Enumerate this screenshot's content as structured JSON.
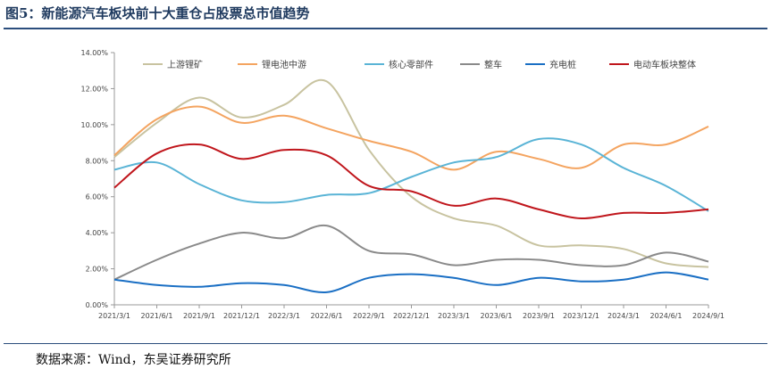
{
  "figure": {
    "title": "图5：新能源汽车板块前十大重仓占股票总市值趋势",
    "source": "数据来源：Wind，东吴证券研究所"
  },
  "chart_data": {
    "type": "line",
    "categories": [
      "2021/3/1",
      "2021/6/1",
      "2021/9/1",
      "2021/12/1",
      "2022/3/1",
      "2022/6/1",
      "2022/9/1",
      "2022/12/1",
      "2023/3/1",
      "2023/6/1",
      "2023/9/1",
      "2023/12/1",
      "2024/3/1",
      "2024/6/1",
      "2024/9/1"
    ],
    "y_ticks": [
      "0.00%",
      "2.00%",
      "4.00%",
      "6.00%",
      "8.00%",
      "10.00%",
      "12.00%",
      "14.00%"
    ],
    "ylim": [
      0,
      14
    ],
    "grid": false,
    "legend_position": "top",
    "series": [
      {
        "name": "上游锂矿",
        "color": "#c8c3a0",
        "values": [
          8.2,
          10.1,
          11.5,
          10.4,
          11.1,
          12.4,
          8.6,
          6.0,
          4.8,
          4.4,
          3.3,
          3.3,
          3.1,
          2.3,
          2.1
        ]
      },
      {
        "name": "锂电池中游",
        "color": "#f4a460",
        "values": [
          8.3,
          10.3,
          11.0,
          10.1,
          10.5,
          9.8,
          9.1,
          8.5,
          7.5,
          8.5,
          8.1,
          7.6,
          8.9,
          8.9,
          9.9
        ]
      },
      {
        "name": "核心零部件",
        "color": "#5ab4d6",
        "values": [
          7.5,
          7.9,
          6.7,
          5.8,
          5.7,
          6.1,
          6.2,
          7.1,
          7.9,
          8.2,
          9.2,
          8.9,
          7.6,
          6.6,
          5.2
        ]
      },
      {
        "name": "整车",
        "color": "#8a8a8a",
        "values": [
          1.4,
          2.5,
          3.4,
          4.0,
          3.7,
          4.4,
          3.0,
          2.8,
          2.2,
          2.5,
          2.5,
          2.2,
          2.2,
          2.9,
          2.4
        ]
      },
      {
        "name": "充电桩",
        "color": "#1a6fc4",
        "values": [
          1.4,
          1.1,
          1.0,
          1.2,
          1.1,
          0.7,
          1.5,
          1.7,
          1.5,
          1.1,
          1.5,
          1.3,
          1.4,
          1.8,
          1.4
        ]
      },
      {
        "name": "电动车板块整体",
        "color": "#c0161c",
        "values": [
          6.5,
          8.4,
          8.9,
          8.1,
          8.6,
          8.3,
          6.6,
          6.3,
          5.5,
          5.9,
          5.3,
          4.8,
          5.1,
          5.1,
          5.3
        ]
      }
    ]
  }
}
